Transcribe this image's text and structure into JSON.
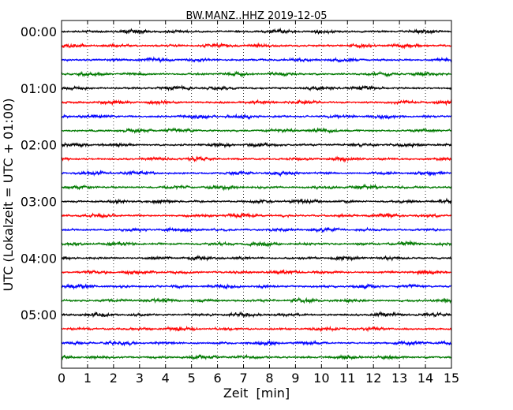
{
  "chart_data": {
    "type": "line",
    "title": "BW.MANZ..HHZ 2019-12-05",
    "xlabel": "Zeit  [min]",
    "ylabel": "UTC (Lokalzeit = UTC + 01:00)",
    "xlim": [
      0,
      15
    ],
    "x_ticks": [
      "0",
      "1",
      "2",
      "3",
      "4",
      "5",
      "6",
      "7",
      "8",
      "9",
      "10",
      "11",
      "12",
      "13",
      "14",
      "15"
    ],
    "y_tick_labels": [
      "00:00",
      "01:00",
      "02:00",
      "03:00",
      "04:00",
      "05:00"
    ],
    "trace_interval_minutes": 15,
    "trace_count": 24,
    "trace_colors": [
      "#000000",
      "#ff0000",
      "#0000ff",
      "#007a00"
    ],
    "grid": "vertical dotted",
    "traces": [
      {
        "start": "00:00",
        "color": "#000000"
      },
      {
        "start": "00:15",
        "color": "#ff0000"
      },
      {
        "start": "00:30",
        "color": "#0000ff"
      },
      {
        "start": "00:45",
        "color": "#007a00"
      },
      {
        "start": "01:00",
        "color": "#000000"
      },
      {
        "start": "01:15",
        "color": "#ff0000"
      },
      {
        "start": "01:30",
        "color": "#0000ff"
      },
      {
        "start": "01:45",
        "color": "#007a00"
      },
      {
        "start": "02:00",
        "color": "#000000"
      },
      {
        "start": "02:15",
        "color": "#ff0000"
      },
      {
        "start": "02:30",
        "color": "#0000ff"
      },
      {
        "start": "02:45",
        "color": "#007a00"
      },
      {
        "start": "03:00",
        "color": "#000000"
      },
      {
        "start": "03:15",
        "color": "#ff0000"
      },
      {
        "start": "03:30",
        "color": "#0000ff"
      },
      {
        "start": "03:45",
        "color": "#007a00"
      },
      {
        "start": "04:00",
        "color": "#000000"
      },
      {
        "start": "04:15",
        "color": "#ff0000"
      },
      {
        "start": "04:30",
        "color": "#0000ff"
      },
      {
        "start": "04:45",
        "color": "#007a00"
      },
      {
        "start": "05:00",
        "color": "#000000"
      },
      {
        "start": "05:15",
        "color": "#ff0000"
      },
      {
        "start": "05:30",
        "color": "#0000ff"
      },
      {
        "start": "05:45",
        "color": "#007a00"
      }
    ]
  }
}
